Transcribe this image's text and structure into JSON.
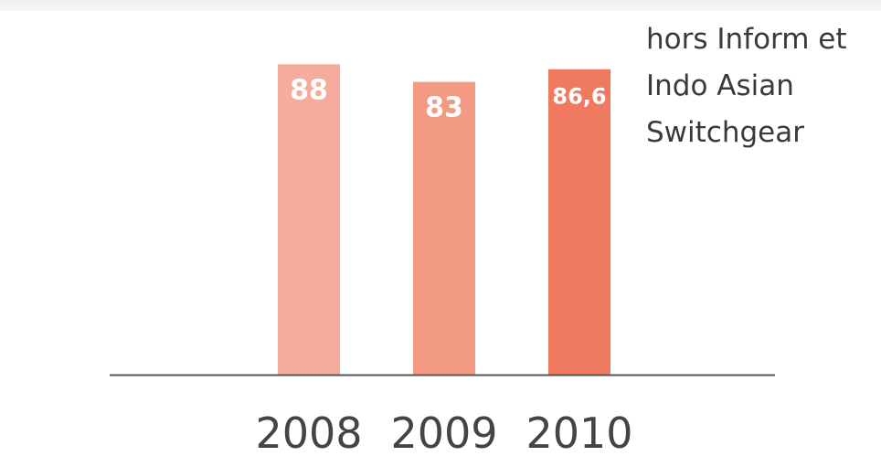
{
  "chart_data": {
    "type": "bar",
    "categories": [
      "2008",
      "2009",
      "2010"
    ],
    "values": [
      88,
      83,
      86.6
    ],
    "value_labels": [
      "88",
      "83",
      "86,6"
    ],
    "ylim": [
      0,
      100
    ],
    "annotation_lines": [
      "hors Inform et",
      "Indo Asian",
      "Switchgear"
    ],
    "grid": false,
    "colors": {
      "bars": [
        "#f4ad9c",
        "#f39a83",
        "#ef7a5f"
      ],
      "value_label": "#ffffff",
      "axis": "#555555",
      "tick_label": "#444444",
      "annotation": "#3a3a3a"
    }
  }
}
